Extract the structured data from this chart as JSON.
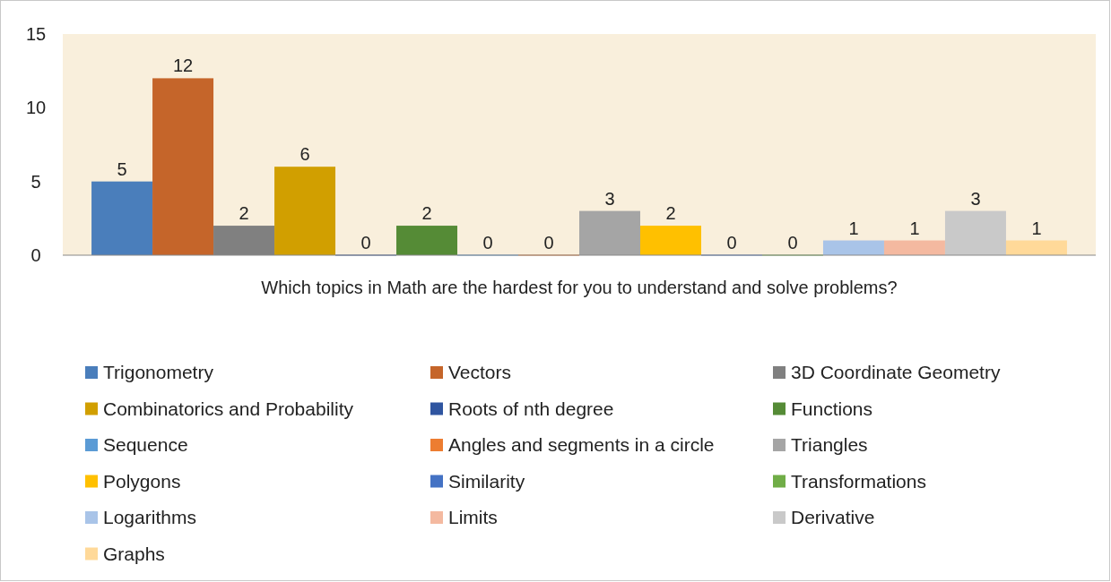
{
  "chart_data": {
    "type": "bar",
    "categories": [
      "Which topics in Math are the hardest for you to understand and solve problems?"
    ],
    "series": [
      {
        "name": "Trigonometry",
        "color": "#4a7ebb",
        "values": [
          5
        ]
      },
      {
        "name": "Vectors",
        "color": "#c5652a",
        "values": [
          12
        ]
      },
      {
        "name": "3D Coordinate Geometry",
        "color": "#808080",
        "values": [
          2
        ]
      },
      {
        "name": "Combinatorics and Probability",
        "color": "#d19f00",
        "values": [
          6
        ]
      },
      {
        "name": "Roots of nth degree",
        "color": "#2f55a0",
        "values": [
          0
        ]
      },
      {
        "name": "Functions",
        "color": "#558b36",
        "values": [
          2
        ]
      },
      {
        "name": "Sequence",
        "color": "#5b9bd5",
        "values": [
          0
        ]
      },
      {
        "name": "Angles and segments in a circle",
        "color": "#ed7d31",
        "values": [
          0
        ]
      },
      {
        "name": "Triangles",
        "color": "#a5a5a5",
        "values": [
          3
        ]
      },
      {
        "name": "Polygons",
        "color": "#ffc000",
        "values": [
          2
        ]
      },
      {
        "name": "Similarity",
        "color": "#4472c4",
        "values": [
          0
        ]
      },
      {
        "name": "Transformations",
        "color": "#70ad47",
        "values": [
          0
        ]
      },
      {
        "name": "Logarithms",
        "color": "#a9c4e8",
        "values": [
          1
        ]
      },
      {
        "name": "Limits",
        "color": "#f4b9a0",
        "values": [
          1
        ]
      },
      {
        "name": "Derivative",
        "color": "#c9c9c9",
        "values": [
          3
        ]
      },
      {
        "name": "Graphs",
        "color": "#ffd999",
        "values": [
          1
        ]
      }
    ],
    "ylim": [
      0,
      15
    ],
    "yticks": [
      0,
      5,
      10,
      15
    ],
    "grid": false,
    "legend": "bottom",
    "data_labels": true
  }
}
